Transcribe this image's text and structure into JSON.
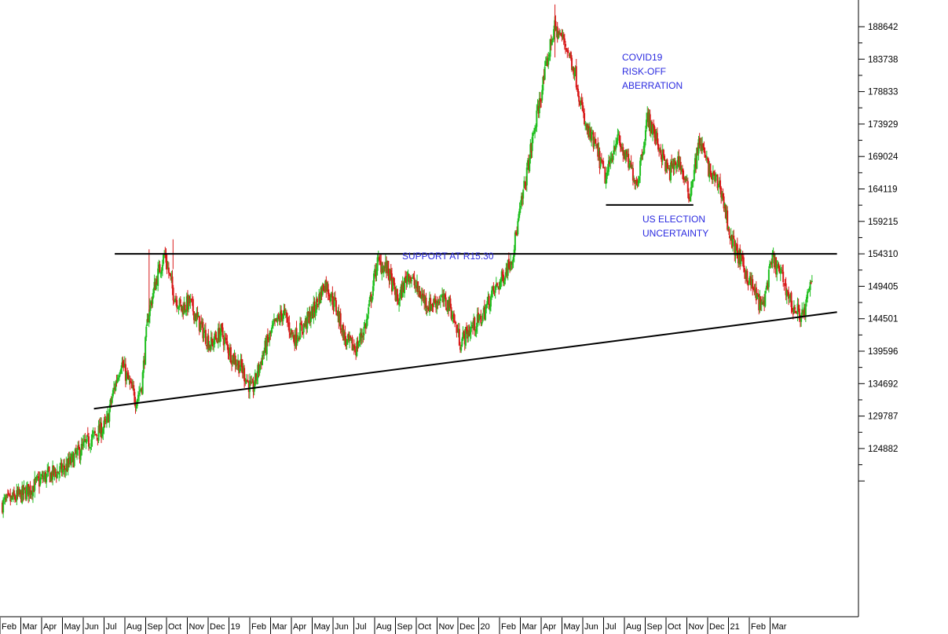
{
  "chart_data": {
    "type": "candlestick",
    "title": "",
    "xlabel": "",
    "ylabel": "",
    "y_axis_position": "right",
    "grid": false,
    "ylim": [
      115000,
      192500
    ],
    "colors": {
      "up": "#1fbf1f",
      "down": "#d81818",
      "trendline": "#000000",
      "annotation": "#2a2ae0"
    },
    "y_ticks": [
      188642,
      183738,
      178833,
      173929,
      169024,
      164119,
      159215,
      154310,
      149405,
      144501,
      139596,
      134692,
      129787,
      124882
    ],
    "x_ticks": [
      "Feb",
      "Mar",
      "Apr",
      "May",
      "Jun",
      "Jul",
      "Aug",
      "Sep",
      "Oct",
      "Nov",
      "Dec",
      "19",
      "Feb",
      "Mar",
      "Apr",
      "May",
      "Jun",
      "Jul",
      "Aug",
      "Sep",
      "Oct",
      "Nov",
      "Dec",
      "20",
      "Feb",
      "Mar",
      "Apr",
      "May",
      "Jun",
      "Jul",
      "Aug",
      "Sep",
      "Oct",
      "Nov",
      "Dec",
      "21",
      "Feb",
      "Mar"
    ],
    "price_path": [
      [
        0,
        116500
      ],
      [
        1,
        118000
      ],
      [
        2,
        120500
      ],
      [
        3,
        121800
      ],
      [
        4,
        125500
      ],
      [
        5,
        128500
      ],
      [
        5.3,
        133000
      ],
      [
        5.7,
        138000
      ],
      [
        6,
        135500
      ],
      [
        6.4,
        132200
      ],
      [
        6.7,
        134500
      ],
      [
        7,
        145000
      ],
      [
        7.4,
        150500
      ],
      [
        7.8,
        154300
      ],
      [
        8.2,
        148500
      ],
      [
        8.6,
        146000
      ],
      [
        9,
        147000
      ],
      [
        9.5,
        143500
      ],
      [
        10,
        140500
      ],
      [
        10.5,
        142500
      ],
      [
        11,
        139000
      ],
      [
        11.5,
        137000
      ],
      [
        12,
        133500
      ],
      [
        12.5,
        139000
      ],
      [
        13,
        143000
      ],
      [
        13.5,
        145500
      ],
      [
        14,
        141500
      ],
      [
        14.5,
        143500
      ],
      [
        15,
        146000
      ],
      [
        15.5,
        150000
      ],
      [
        16,
        146500
      ],
      [
        16.5,
        141000
      ],
      [
        17,
        140000
      ],
      [
        17.5,
        144000
      ],
      [
        18,
        153000
      ],
      [
        18.5,
        152000
      ],
      [
        19,
        147000
      ],
      [
        19.5,
        151500
      ],
      [
        20,
        148500
      ],
      [
        20.5,
        146500
      ],
      [
        21,
        147500
      ],
      [
        21.5,
        146500
      ],
      [
        22,
        141000
      ],
      [
        22.5,
        143000
      ],
      [
        23,
        144500
      ],
      [
        23.5,
        148000
      ],
      [
        24,
        150500
      ],
      [
        24.5,
        154000
      ],
      [
        25,
        163000
      ],
      [
        25.5,
        172000
      ],
      [
        26,
        180500
      ],
      [
        26.5,
        188500
      ],
      [
        27,
        186500
      ],
      [
        27.5,
        182000
      ],
      [
        28,
        173500
      ],
      [
        28.5,
        170500
      ],
      [
        29,
        165500
      ],
      [
        29.5,
        172000
      ],
      [
        30,
        168500
      ],
      [
        30.5,
        165000
      ],
      [
        31,
        175000
      ],
      [
        31.5,
        171000
      ],
      [
        32,
        166500
      ],
      [
        32.5,
        168500
      ],
      [
        33,
        163000
      ],
      [
        33.5,
        171500
      ],
      [
        34,
        166500
      ],
      [
        34.5,
        164500
      ],
      [
        35,
        156500
      ],
      [
        35.5,
        153000
      ],
      [
        36,
        149500
      ],
      [
        36.5,
        146000
      ],
      [
        37,
        153500
      ],
      [
        37.5,
        150500
      ],
      [
        38,
        146000
      ],
      [
        38.5,
        145000
      ],
      [
        38.9,
        150500
      ]
    ],
    "trendlines": [
      {
        "name": "support-resistance",
        "x1": 5.4,
        "y1": 154310,
        "x2": 40.1,
        "y2": 154310
      },
      {
        "name": "rising-support",
        "x1": 4.4,
        "y1": 130900,
        "x2": 40.1,
        "y2": 145500
      },
      {
        "name": "us-election-level",
        "x1": 29.0,
        "y1": 161700,
        "x2": 33.2,
        "y2": 161700
      }
    ],
    "annotations": [
      {
        "id": "support",
        "lines": [
          "SUPPORT AT R15.30"
        ]
      },
      {
        "id": "covid",
        "lines": [
          "COVID19",
          "RISK-OFF",
          "ABERRATION"
        ]
      },
      {
        "id": "election",
        "lines": [
          "US ELECTION",
          "UNCERTAINTY"
        ]
      }
    ]
  }
}
